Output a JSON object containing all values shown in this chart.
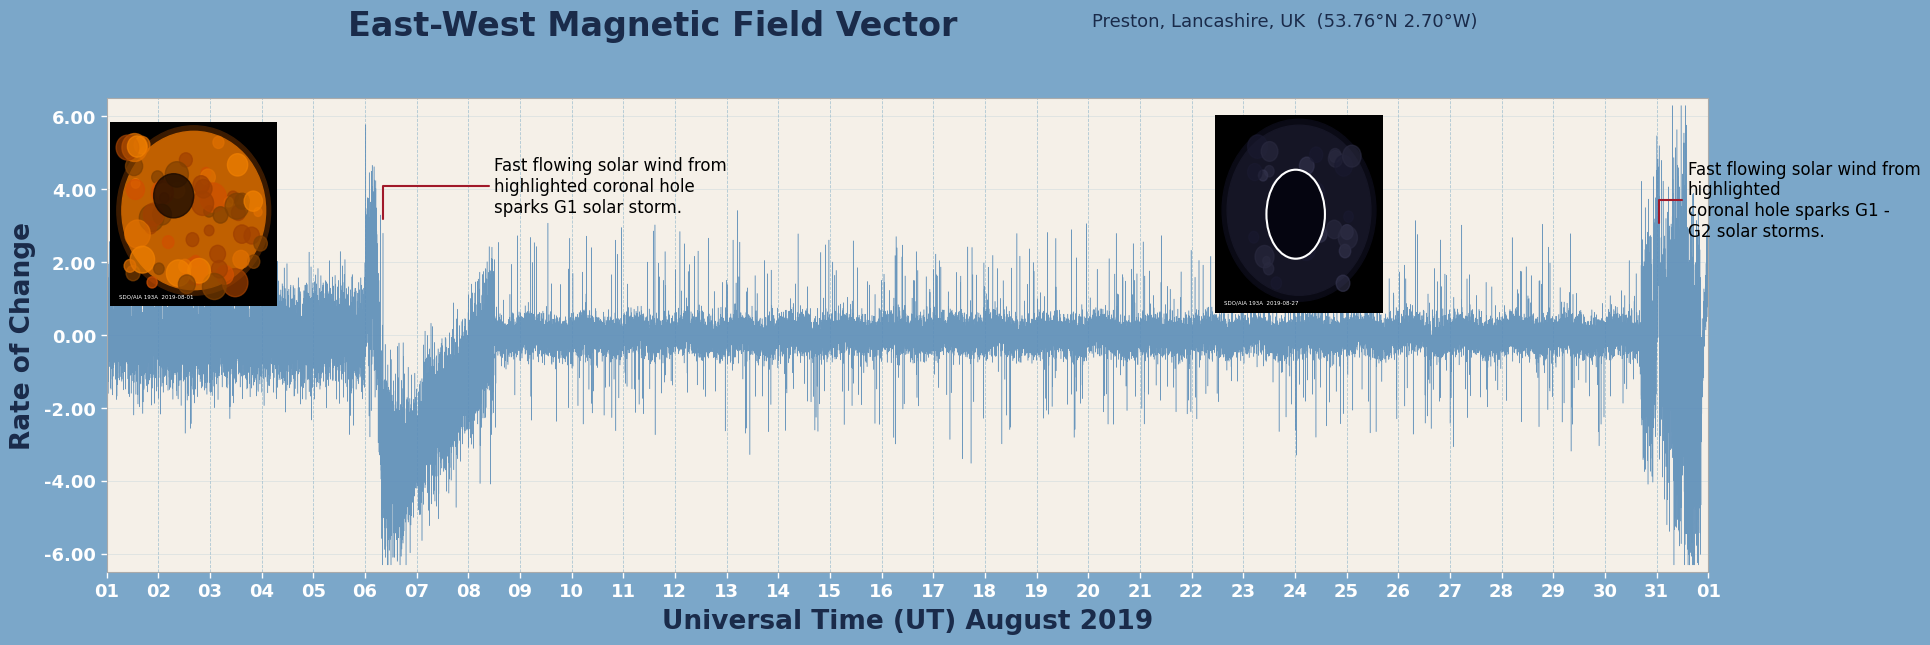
{
  "title_main": "East-West Magnetic Field Vector",
  "title_sub": "Preston, Lancashire, UK  (53.76°N 2.70°W)",
  "xlabel": "Universal Time (UT) August 2019",
  "ylabel": "Rate of Change",
  "background_color": "#7BA7C9",
  "plot_bg_color": "#F5F0E8",
  "line_color": "#5B8DB8",
  "ylim": [
    -6.5,
    6.5
  ],
  "yticks": [
    -6.0,
    -4.0,
    -2.0,
    0.0,
    2.0,
    4.0,
    6.0
  ],
  "ytick_labels": [
    "-6.00",
    "-4.00",
    "-2.00",
    "0.00",
    "2.00",
    "4.00",
    "6.00"
  ],
  "xtick_labels": [
    "01",
    "02",
    "03",
    "04",
    "05",
    "06",
    "07",
    "08",
    "09",
    "10",
    "11",
    "12",
    "13",
    "14",
    "15",
    "16",
    "17",
    "18",
    "19",
    "20",
    "21",
    "22",
    "23",
    "24",
    "25",
    "26",
    "27",
    "28",
    "29",
    "30",
    "31",
    "01"
  ],
  "n_days": 31,
  "annotation1_text": "Fast flowing solar wind from\nhighlighted coronal hole\nsparks G1 solar storm.",
  "annotation2_text": "Fast flowing solar wind from\nhighlighted\ncoronal hole sparks G1 -\nG2 solar storms.",
  "title_fontsize": 24,
  "subtitle_fontsize": 13,
  "axis_label_fontsize": 19,
  "tick_label_fontsize": 13,
  "annotation_fontsize": 12,
  "grid_color": "#9BBCCE",
  "tick_color": "#FFFFFF",
  "title_color": "#1A2B4A",
  "axis_label_color": "#1A2B4A",
  "arrow_color": "#A0192A"
}
